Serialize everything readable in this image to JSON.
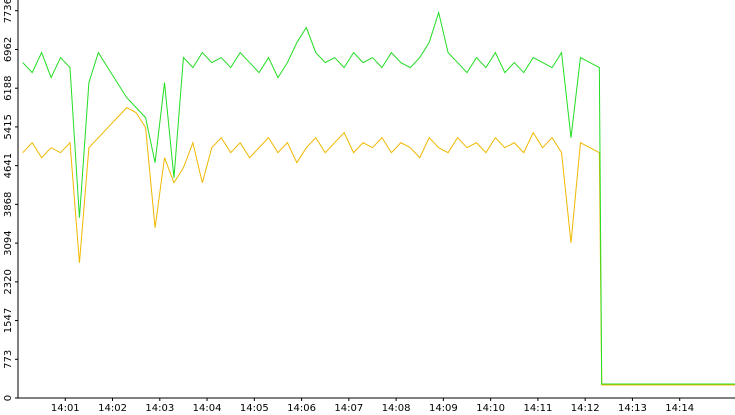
{
  "chart_data": {
    "type": "line",
    "x": [
      0.1,
      0.3,
      0.5,
      0.7,
      0.9,
      1.1,
      1.3,
      1.5,
      1.7,
      1.9,
      2.1,
      2.3,
      2.5,
      2.7,
      2.9,
      3.1,
      3.3,
      3.5,
      3.7,
      3.9,
      4.1,
      4.3,
      4.5,
      4.7,
      4.9,
      5.1,
      5.3,
      5.5,
      5.7,
      5.9,
      6.1,
      6.3,
      6.5,
      6.7,
      6.9,
      7.1,
      7.3,
      7.5,
      7.7,
      7.9,
      8.1,
      8.3,
      8.5,
      8.7,
      8.9,
      9.1,
      9.3,
      9.5,
      9.7,
      9.9,
      10.1,
      10.3,
      10.5,
      10.7,
      10.9,
      11.1,
      11.3,
      11.5,
      11.7,
      11.9,
      12.1,
      12.3,
      12.35,
      15.17
    ],
    "series": [
      {
        "color": "#f0b800",
        "values": [
          4900,
          5100,
          4800,
          5000,
          4900,
          5100,
          2700,
          5000,
          5200,
          5400,
          5600,
          5800,
          5700,
          5400,
          3400,
          4800,
          4300,
          4600,
          5100,
          4300,
          5000,
          5200,
          4900,
          5100,
          4800,
          5000,
          5200,
          4900,
          5100,
          4700,
          5000,
          5200,
          4900,
          5100,
          5300,
          4900,
          5100,
          5000,
          5200,
          4900,
          5100,
          5000,
          4800,
          5200,
          5000,
          4900,
          5200,
          5000,
          5100,
          4900,
          5200,
          5000,
          5100,
          4900,
          5300,
          5000,
          5200,
          4900,
          3100,
          5100,
          5000,
          4900,
          260,
          260
        ]
      },
      {
        "color": "#22dd22",
        "values": [
          6700,
          6500,
          6900,
          6400,
          6800,
          6600,
          3600,
          6300,
          6900,
          6600,
          6300,
          6000,
          5800,
          5600,
          4700,
          6300,
          4400,
          6800,
          6600,
          6900,
          6700,
          6800,
          6600,
          6900,
          6700,
          6500,
          6800,
          6400,
          6700,
          7100,
          7400,
          6900,
          6700,
          6800,
          6600,
          6900,
          6700,
          6800,
          6600,
          6900,
          6700,
          6600,
          6800,
          7100,
          7700,
          6900,
          6700,
          6500,
          6800,
          6600,
          6900,
          6500,
          6700,
          6500,
          6800,
          6700,
          6600,
          6900,
          5200,
          6800,
          6700,
          6600,
          280,
          280
        ]
      }
    ],
    "xlim": [
      0,
      15.17
    ],
    "xticks": [
      {
        "value": 1,
        "label": "14:01"
      },
      {
        "value": 2,
        "label": "14:02"
      },
      {
        "value": 3,
        "label": "14:03"
      },
      {
        "value": 4,
        "label": "14:04"
      },
      {
        "value": 5,
        "label": "14:05"
      },
      {
        "value": 6,
        "label": "14:06"
      },
      {
        "value": 7,
        "label": "14:07"
      },
      {
        "value": 8,
        "label": "14:08"
      },
      {
        "value": 9,
        "label": "14:09"
      },
      {
        "value": 10,
        "label": "14:10"
      },
      {
        "value": 11,
        "label": "14:11"
      },
      {
        "value": 12,
        "label": "14:12"
      },
      {
        "value": 13,
        "label": "14:13"
      },
      {
        "value": 14,
        "label": "14:14"
      }
    ],
    "ylim": [
      0,
      7950
    ],
    "yticks": [
      0,
      773,
      1547,
      2320,
      3094,
      3868,
      4641,
      5415,
      6188,
      6962,
      7736
    ]
  }
}
